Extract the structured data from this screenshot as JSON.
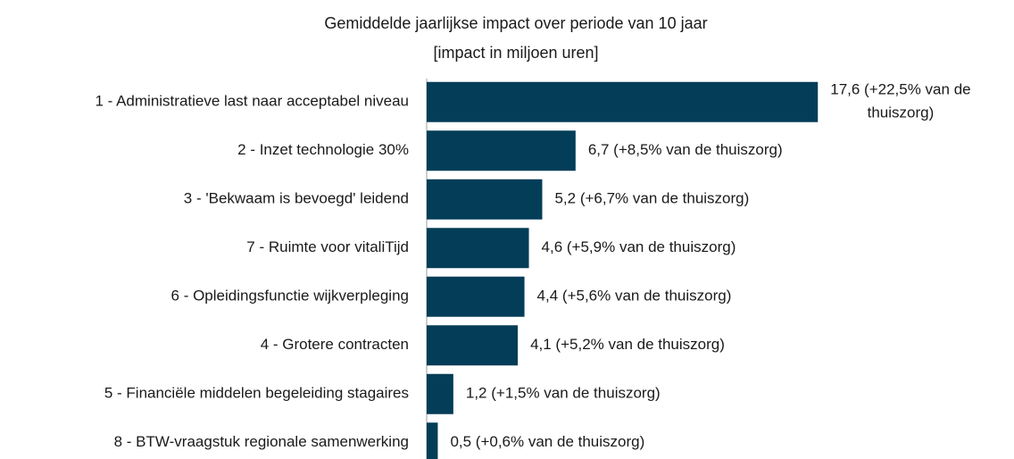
{
  "chart_data": {
    "type": "hbar",
    "title": "Gemiddelde jaarlijkse impact over periode van 10 jaar",
    "subtitle": "[impact in miljoen uren]",
    "categories": [
      "1 - Administratieve last naar acceptabel niveau",
      "2 - Inzet technologie 30%",
      "3 - 'Bekwaam is bevoegd' leidend",
      "7 - Ruimte voor vitaliTijd",
      "6 - Opleidingsfunctie wijkverpleging",
      "4 - Grotere contracten",
      "5 - Financiële middelen begeleiding stagaires",
      "8 - BTW-vraagstuk regionale samenwerking"
    ],
    "values": [
      17.6,
      6.7,
      5.2,
      4.6,
      4.4,
      4.1,
      1.2,
      0.5
    ],
    "value_labels": [
      "17,6 (+22,5% van de thuiszorg)",
      "6,7 (+8,5% van de thuiszorg)",
      "5,2 (+6,7% van de thuiszorg)",
      "4,6 (+5,9% van de thuiszorg)",
      "4,4 (+5,6% van de thuiszorg)",
      "4,1 (+5,2% van de thuiszorg)",
      "1,2 (+1,5% van de thuiszorg)",
      "0,5 (+0,6% van de thuiszorg)"
    ],
    "color": "#033d58",
    "xlim": [
      0,
      20
    ]
  }
}
